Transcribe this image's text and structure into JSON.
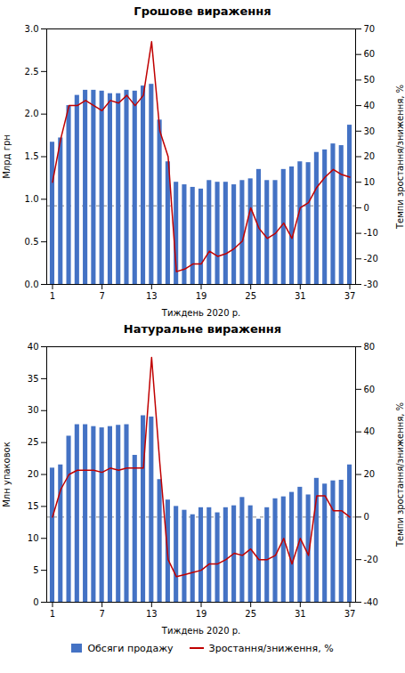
{
  "chart_data": [
    {
      "type": "bar",
      "title": "Грошове вираження",
      "x": [
        1,
        2,
        3,
        4,
        5,
        6,
        7,
        8,
        9,
        10,
        11,
        12,
        13,
        14,
        15,
        16,
        17,
        18,
        19,
        20,
        21,
        22,
        23,
        24,
        25,
        26,
        27,
        28,
        29,
        30,
        31,
        32,
        33,
        34,
        35,
        36,
        37
      ],
      "xlim": [
        0.3,
        37.7
      ],
      "xticks": [
        1,
        7,
        13,
        19,
        25,
        31,
        37
      ],
      "xlabel": "Тиждень 2020 р.",
      "ylabel": "Млрд грн",
      "y2label": "Темпи зростання/зниження, %",
      "ylim": [
        0,
        3.0
      ],
      "yticks": [
        {
          "value": 0.0,
          "label": "0.0"
        },
        0.5,
        {
          "value": 1.0,
          "label": "1.0"
        },
        1.5,
        {
          "value": 2.0,
          "label": "2.0"
        },
        2.5,
        {
          "value": 3.0,
          "label": "3.0"
        }
      ],
      "y2lim": [
        -30,
        70
      ],
      "y2ticks": [
        -30,
        -20,
        -10,
        0,
        10,
        20,
        30,
        40,
        50,
        60,
        70
      ],
      "zero_line": 0.923,
      "grid": false,
      "legend": false,
      "series": [
        {
          "name": "Обсяги продажу",
          "type": "bar",
          "color": "#4472C4",
          "values": [
            1.67,
            1.72,
            2.1,
            2.22,
            2.28,
            2.28,
            2.27,
            2.24,
            2.24,
            2.28,
            2.27,
            2.33,
            2.35,
            1.93,
            1.44,
            1.2,
            1.17,
            1.14,
            1.12,
            1.22,
            1.2,
            1.2,
            1.17,
            1.22,
            1.24,
            1.35,
            1.22,
            1.22,
            1.35,
            1.38,
            1.44,
            1.43,
            1.55,
            1.58,
            1.65,
            1.63,
            1.87
          ]
        },
        {
          "name": "Зростання/зниження, %",
          "type": "line",
          "color": "#C00000",
          "axis": "y2",
          "values": [
            10,
            27,
            40,
            40,
            42,
            40,
            38,
            42,
            41,
            44,
            40,
            44,
            65,
            30,
            20,
            -25,
            -24,
            -22,
            -22,
            -17,
            -19,
            -18,
            -16,
            -13,
            0,
            -8,
            -12,
            -10,
            -6,
            -12,
            0,
            2,
            8,
            12,
            15,
            13,
            12
          ]
        }
      ]
    },
    {
      "type": "bar",
      "title": "Натуральне вираження",
      "x": [
        1,
        2,
        3,
        4,
        5,
        6,
        7,
        8,
        9,
        10,
        11,
        12,
        13,
        14,
        15,
        16,
        17,
        18,
        19,
        20,
        21,
        22,
        23,
        24,
        25,
        26,
        27,
        28,
        29,
        30,
        31,
        32,
        33,
        34,
        35,
        36,
        37
      ],
      "xlim": [
        0.3,
        37.7
      ],
      "xticks": [
        1,
        7,
        13,
        19,
        25,
        31,
        37
      ],
      "xlabel": "Тиждень 2020 р.",
      "ylabel": "Млн упаковок",
      "y2label": "Темпи зростання/зниження, %",
      "ylim": [
        0,
        40
      ],
      "yticks": [
        0,
        5,
        10,
        15,
        20,
        25,
        30,
        35,
        40
      ],
      "y2lim": [
        -40,
        80
      ],
      "y2ticks": [
        -40,
        -20,
        0,
        20,
        40,
        60,
        80
      ],
      "zero_line": 13.33,
      "grid": false,
      "legend": "bottom",
      "series": [
        {
          "name": "Обсяги продажу",
          "type": "bar",
          "color": "#4472C4",
          "values": [
            21.0,
            21.5,
            26.0,
            27.8,
            27.8,
            27.5,
            27.3,
            27.5,
            27.7,
            27.8,
            23.0,
            29.2,
            29.0,
            19.2,
            16.0,
            15.0,
            14.4,
            13.7,
            14.8,
            14.8,
            14.0,
            14.8,
            15.1,
            16.4,
            15.1,
            13.0,
            14.8,
            16.2,
            16.5,
            17.2,
            18.0,
            16.8,
            19.4,
            18.5,
            19.0,
            19.1,
            21.5
          ]
        },
        {
          "name": "Зростання/зниження, %",
          "type": "line",
          "color": "#C00000",
          "axis": "y2",
          "values": [
            0,
            13,
            20,
            22,
            22,
            22,
            21,
            23,
            22,
            23,
            23,
            23,
            75,
            25,
            -20,
            -28,
            -27,
            -26,
            -25,
            -22,
            -22,
            -20,
            -17,
            -18,
            -15,
            -20,
            -20,
            -18,
            -10,
            -22,
            -10,
            -18,
            10,
            10,
            3,
            3,
            0
          ]
        }
      ]
    }
  ]
}
